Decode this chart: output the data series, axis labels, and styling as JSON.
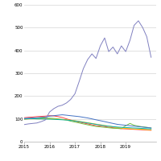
{
  "xlim": [
    2015.0,
    2020.2
  ],
  "ylim": [
    0,
    600
  ],
  "yticks": [
    0,
    100,
    200,
    300,
    400,
    500,
    600
  ],
  "xticks": [
    2015,
    2016,
    2017,
    2018,
    2019
  ],
  "x": [
    2015.0,
    2015.17,
    2015.33,
    2015.5,
    2015.67,
    2015.83,
    2016.0,
    2016.17,
    2016.33,
    2016.5,
    2016.67,
    2016.83,
    2017.0,
    2017.17,
    2017.33,
    2017.5,
    2017.67,
    2017.83,
    2018.0,
    2018.17,
    2018.33,
    2018.5,
    2018.67,
    2018.83,
    2019.0,
    2019.17,
    2019.33,
    2019.5,
    2019.67,
    2019.83,
    2020.0
  ],
  "purple_line": [
    75,
    78,
    80,
    82,
    88,
    95,
    130,
    145,
    155,
    160,
    170,
    185,
    210,
    265,
    320,
    360,
    385,
    365,
    420,
    455,
    395,
    415,
    385,
    420,
    395,
    445,
    510,
    530,
    500,
    460,
    370
  ],
  "blue_line": [
    102,
    103,
    104,
    105,
    107,
    108,
    112,
    114,
    116,
    118,
    116,
    114,
    112,
    110,
    107,
    104,
    100,
    96,
    92,
    88,
    84,
    80,
    76,
    74,
    72,
    70,
    68,
    66,
    64,
    62,
    60
  ],
  "red_line": [
    105,
    107,
    108,
    110,
    111,
    112,
    114,
    113,
    110,
    106,
    100,
    95,
    90,
    86,
    82,
    78,
    74,
    70,
    68,
    66,
    63,
    61,
    59,
    57,
    56,
    55,
    54,
    53,
    52,
    51,
    50
  ],
  "green_line": [
    98,
    100,
    102,
    103,
    104,
    104,
    103,
    102,
    100,
    98,
    95,
    90,
    86,
    82,
    78,
    74,
    70,
    67,
    65,
    63,
    61,
    59,
    58,
    57,
    70,
    80,
    72,
    68,
    65,
    63,
    60
  ],
  "orange_line": [
    100,
    100,
    100,
    100,
    100,
    100,
    100,
    99,
    98,
    97,
    96,
    94,
    92,
    89,
    86,
    83,
    80,
    77,
    74,
    71,
    68,
    65,
    62,
    60,
    58,
    57,
    56,
    55,
    54,
    53,
    52
  ],
  "teal_line": [
    100,
    101,
    101,
    100,
    100,
    99,
    99,
    98,
    97,
    96,
    95,
    93,
    91,
    88,
    85,
    82,
    79,
    76,
    73,
    70,
    68,
    66,
    64,
    63,
    62,
    61,
    60,
    59,
    58,
    57,
    56
  ],
  "colors": {
    "purple": "#8080c0",
    "blue": "#4472c4",
    "red": "#ff4040",
    "green": "#70c040",
    "orange": "#ffc000",
    "teal": "#00b0b0"
  },
  "background": "#ffffff",
  "grid_color": "#d4d4d4"
}
